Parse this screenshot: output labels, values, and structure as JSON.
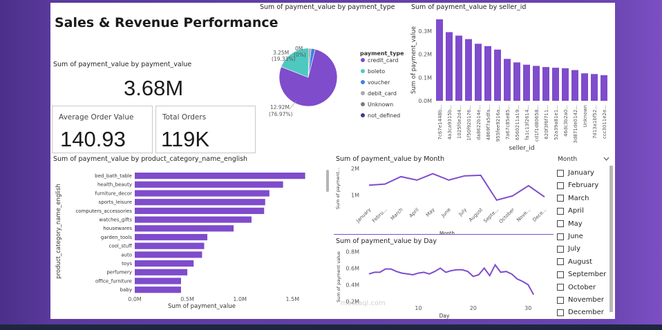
{
  "dashboard_title": "Sales & Revenue Performance",
  "kpi_total": {
    "title": "Sum of payment_value by payment_value",
    "value": "3.68M"
  },
  "kpi_avg": {
    "label": "Average Order Value",
    "value": "140.93"
  },
  "kpi_orders": {
    "label": "Total Orders",
    "value": "119K"
  },
  "watermark": "mostaql.com",
  "colors": {
    "purple": "#7f4ccc",
    "teal": "#4ec9c0",
    "blue": "#3f7fe0",
    "grey": "#a9a9a9",
    "dark": "#3b3b8f"
  },
  "slicer": {
    "title": "Month",
    "chevron": "chevron-down-icon",
    "items": [
      "January",
      "February",
      "March",
      "April",
      "May",
      "June",
      "July",
      "August",
      "September",
      "October",
      "November",
      "December"
    ]
  },
  "chart_data": [
    {
      "type": "pie",
      "title": "Sum of payment_value by payment_type",
      "legend_title": "payment_type",
      "legend_position": "right",
      "slices": [
        {
          "label": "credit_card",
          "value": 12.92,
          "display": "12.92M",
          "percent": "(76.97%)",
          "color": "#7f4ccc"
        },
        {
          "label": "boleto",
          "value": 3.25,
          "display": "3.25M",
          "percent": "(19.33%)",
          "color": "#4ec9c0"
        },
        {
          "label": "voucher",
          "value": 0.38,
          "display": "",
          "percent": "",
          "color": "#3f7fe0"
        },
        {
          "label": "debit_card",
          "value": 0.22,
          "display": "",
          "percent": "",
          "color": "#a9a9a9"
        },
        {
          "label": "Unknown",
          "value": 0.005,
          "display": "0M",
          "percent": "(0%)",
          "color": "#7a7a7a"
        },
        {
          "label": "not_defined",
          "value": 0.001,
          "display": "",
          "percent": "",
          "color": "#3b3b8f"
        }
      ]
    },
    {
      "type": "bar",
      "title": "Sum of payment_value by seller_id",
      "xlabel": "seller_id",
      "ylabel": "Sum of payment_value",
      "ylim": [
        0,
        0.35
      ],
      "yticks": [
        0,
        0.1,
        0.2,
        0.3
      ],
      "ytick_labels": [
        "0.0M",
        "0.1M",
        "0.2M",
        "0.3M"
      ],
      "categories": [
        "7c67e1448b...",
        "4a3ca9315b...",
        "1025f0e2d4...",
        "1f50f920176...",
        "da8622b14e...",
        "4869f7a5dfa...",
        "955fee9216a...",
        "7a67c85e85...",
        "6560211a19...",
        "fa1c13f2614...",
        "cd1f1d80658...",
        "620f3f6f711...",
        "52a39a81e1...",
        "46dc3b2a0...",
        "3d871de0142...",
        "Unknown",
        "7d13a1bf52...",
        "ccc3011e2e..."
      ],
      "values": [
        0.35,
        0.295,
        0.28,
        0.265,
        0.245,
        0.235,
        0.22,
        0.18,
        0.165,
        0.155,
        0.15,
        0.145,
        0.142,
        0.14,
        0.132,
        0.118,
        0.115,
        0.11
      ]
    },
    {
      "type": "bar",
      "orientation": "horizontal",
      "title": "Sum of payment_value by product_category_name_english",
      "xlabel": "Sum of payment_value",
      "ylabel": "product_category_name_english",
      "xlim": [
        0,
        1.8
      ],
      "xticks": [
        0,
        0.5,
        1.0,
        1.5
      ],
      "xtick_labels": [
        "0.0M",
        "0.5M",
        "1.0M",
        "1.5M"
      ],
      "categories": [
        "bed_bath_table",
        "health_beauty",
        "furniture_decor",
        "sports_leisure",
        "computers_accessories",
        "watches_gifts",
        "housewares",
        "garden_tools",
        "cool_stuff",
        "auto",
        "toys",
        "perfumery",
        "office_furniture",
        "baby"
      ],
      "values": [
        1.62,
        1.41,
        1.28,
        1.24,
        1.23,
        1.11,
        0.94,
        0.69,
        0.66,
        0.64,
        0.56,
        0.5,
        0.44,
        0.44
      ]
    },
    {
      "type": "line",
      "title": "Sum of payment_value by Month",
      "xlabel": "Month",
      "ylabel": "Sum of payment...",
      "ylim": [
        0.6,
        2.1
      ],
      "yticks": [
        1,
        2
      ],
      "ytick_labels": [
        "1M",
        "2M"
      ],
      "categories": [
        "January",
        "Febru...",
        "March",
        "April",
        "May",
        "June",
        "July",
        "August",
        "Septe...",
        "October",
        "Nove...",
        "Dece..."
      ],
      "values": [
        1.37,
        1.41,
        1.69,
        1.56,
        1.8,
        1.56,
        1.72,
        1.74,
        0.81,
        0.97,
        1.35,
        0.93
      ]
    },
    {
      "type": "line",
      "title": "Sum of payment_value by Day",
      "xlabel": "Day",
      "ylabel": "Sum of payment value",
      "xlim": [
        0,
        34
      ],
      "ylim": [
        0.17,
        0.82
      ],
      "xticks": [
        10,
        20,
        30
      ],
      "yticks": [
        0.2,
        0.4,
        0.6,
        0.8
      ],
      "ytick_labels": [
        "0.2M",
        "0.4M",
        "0.6M",
        "0.8M"
      ],
      "x": [
        1,
        2,
        3,
        4,
        5,
        6,
        7,
        8,
        9,
        10,
        11,
        12,
        13,
        14,
        15,
        16,
        17,
        18,
        19,
        20,
        21,
        22,
        23,
        24,
        25,
        26,
        27,
        28,
        29,
        30,
        31
      ],
      "values": [
        0.53,
        0.55,
        0.55,
        0.59,
        0.59,
        0.56,
        0.54,
        0.53,
        0.52,
        0.54,
        0.55,
        0.53,
        0.56,
        0.6,
        0.55,
        0.57,
        0.58,
        0.58,
        0.56,
        0.5,
        0.52,
        0.6,
        0.51,
        0.64,
        0.55,
        0.56,
        0.53,
        0.47,
        0.44,
        0.4,
        0.28
      ]
    }
  ]
}
